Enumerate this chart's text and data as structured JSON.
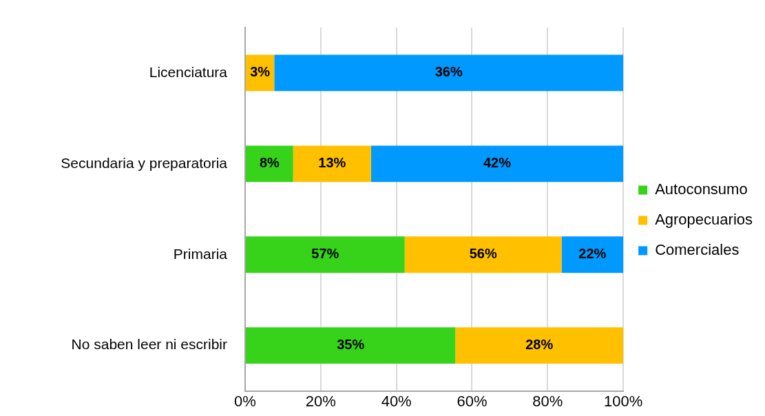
{
  "chart_data": {
    "type": "bar",
    "orientation": "horizontal",
    "stacked": true,
    "categories": [
      "Licenciatura",
      "Secundaria y preparatoria",
      "Primaria",
      "No saben leer ni escribir"
    ],
    "series": [
      {
        "name": "Autoconsumo",
        "color": "#37d31a",
        "values": [
          null,
          12.7,
          42.2,
          55.6
        ]
      },
      {
        "name": "Agropecuarios",
        "color": "#ffc000",
        "values": [
          7.7,
          20.6,
          41.5,
          44.4
        ]
      },
      {
        "name": "Comerciales",
        "color": "#0099ff",
        "values": [
          92.3,
          66.7,
          16.3,
          null
        ]
      }
    ],
    "annotations": [
      "3%",
      "36%",
      "8%",
      "13%",
      "42%",
      "57%",
      "56%",
      "22%",
      "35%",
      "28%"
    ],
    "xlim": [
      0,
      100
    ],
    "xticks": [
      {
        "value": 0,
        "label": "0%"
      },
      {
        "value": 20,
        "label": "20%"
      },
      {
        "value": 40,
        "label": "40%"
      },
      {
        "value": 60,
        "label": "60%"
      },
      {
        "value": 80,
        "label": "80%"
      },
      {
        "value": 100,
        "label": "100%"
      }
    ],
    "grid": "x",
    "legend": "right"
  }
}
